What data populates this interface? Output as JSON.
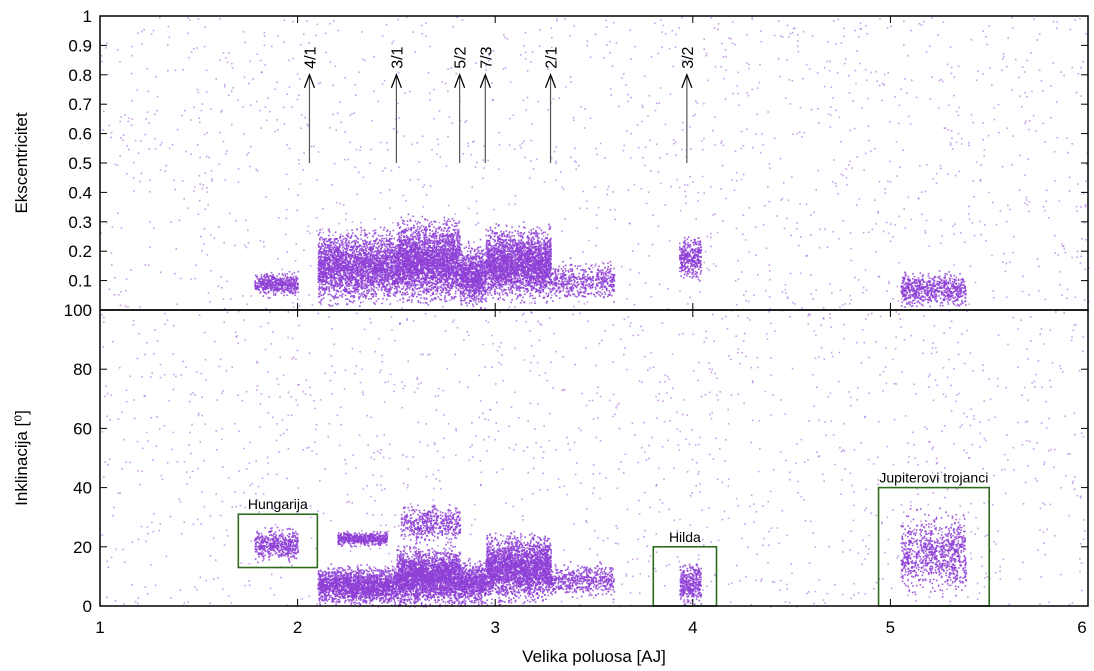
{
  "chart_data": {
    "type": "scatter",
    "point_color": "#8e3fd6",
    "box_color": "#2f6b1f",
    "xlabel": "Velika poluosa [AJ]",
    "xlim": [
      1,
      6
    ],
    "xticks": [
      "1",
      "2",
      "3",
      "4",
      "5",
      "6"
    ],
    "panels": [
      {
        "ylabel": "Ekscentricitet",
        "ylim": [
          0,
          1
        ],
        "yticks": [
          "0.1",
          "0.2",
          "0.3",
          "0.4",
          "0.5",
          "0.6",
          "0.7",
          "0.8",
          "0.9",
          "1"
        ],
        "groups": [
          {
            "a": [
              1.78,
              2.0
            ],
            "y_center": 0.09,
            "y_spread": 0.05,
            "count": 500
          },
          {
            "a": [
              2.1,
              2.5
            ],
            "y_center": 0.15,
            "y_spread": 0.15,
            "count": 2600
          },
          {
            "a": [
              2.5,
              2.82
            ],
            "y_center": 0.17,
            "y_spread": 0.17,
            "count": 2800
          },
          {
            "a": [
              2.82,
              2.95
            ],
            "y_center": 0.12,
            "y_spread": 0.13,
            "count": 900
          },
          {
            "a": [
              2.95,
              3.28
            ],
            "y_center": 0.16,
            "y_spread": 0.15,
            "count": 2600
          },
          {
            "a": [
              3.28,
              3.6
            ],
            "y_center": 0.1,
            "y_spread": 0.08,
            "count": 500
          },
          {
            "a": [
              3.93,
              4.04
            ],
            "y_center": 0.18,
            "y_spread": 0.09,
            "count": 350
          },
          {
            "a": [
              5.05,
              5.38
            ],
            "y_center": 0.07,
            "y_spread": 0.07,
            "count": 700
          },
          {
            "a": [
              1.0,
              6.0
            ],
            "y_center": 0.5,
            "y_spread": 0.5,
            "count": 1500
          }
        ],
        "resonances": [
          {
            "label": "4/1",
            "a": 2.06,
            "e_from": 0.5,
            "e_to": 0.8
          },
          {
            "label": "3/1",
            "a": 2.5,
            "e_from": 0.5,
            "e_to": 0.8
          },
          {
            "label": "5/2",
            "a": 2.82,
            "e_from": 0.5,
            "e_to": 0.8
          },
          {
            "label": "7/3",
            "a": 2.95,
            "e_from": 0.5,
            "e_to": 0.8
          },
          {
            "label": "2/1",
            "a": 3.28,
            "e_from": 0.5,
            "e_to": 0.8
          },
          {
            "label": "3/2",
            "a": 3.97,
            "e_from": 0.5,
            "e_to": 0.8
          }
        ]
      },
      {
        "ylabel": "Inklinacija [⁰]",
        "ylim": [
          0,
          100
        ],
        "yticks": [
          "0",
          "20",
          "40",
          "60",
          "80",
          "100"
        ],
        "groups": [
          {
            "a": [
              1.78,
              2.0
            ],
            "y_center": 21,
            "y_spread": 7,
            "count": 500
          },
          {
            "a": [
              2.1,
              2.5
            ],
            "y_center": 7,
            "y_spread": 8,
            "count": 2000
          },
          {
            "a": [
              2.2,
              2.45
            ],
            "y_center": 23,
            "y_spread": 3,
            "count": 500
          },
          {
            "a": [
              2.5,
              2.82
            ],
            "y_center": 10,
            "y_spread": 12,
            "count": 2600
          },
          {
            "a": [
              2.52,
              2.82
            ],
            "y_center": 28,
            "y_spread": 8,
            "count": 500
          },
          {
            "a": [
              2.82,
              2.95
            ],
            "y_center": 8,
            "y_spread": 9,
            "count": 700
          },
          {
            "a": [
              2.95,
              3.28
            ],
            "y_center": 13,
            "y_spread": 14,
            "count": 2600
          },
          {
            "a": [
              3.28,
              3.6
            ],
            "y_center": 9,
            "y_spread": 7,
            "count": 500
          },
          {
            "a": [
              3.93,
              4.04
            ],
            "y_center": 8,
            "y_spread": 9,
            "count": 350
          },
          {
            "a": [
              5.05,
              5.38
            ],
            "y_center": 18,
            "y_spread": 17,
            "count": 900
          },
          {
            "a": [
              1.0,
              6.0
            ],
            "y_center": 30,
            "y_spread": 30,
            "count": 1500
          }
        ],
        "regions": [
          {
            "label": "Hungarija",
            "a": [
              1.7,
              2.1
            ],
            "i": [
              13,
              31
            ]
          },
          {
            "label": "Hilda",
            "a": [
              3.8,
              4.12
            ],
            "i": [
              0,
              20
            ]
          },
          {
            "label": "Jupiterovi trojanci",
            "a": [
              4.94,
              5.5
            ],
            "i": [
              0,
              40
            ]
          }
        ]
      }
    ]
  }
}
